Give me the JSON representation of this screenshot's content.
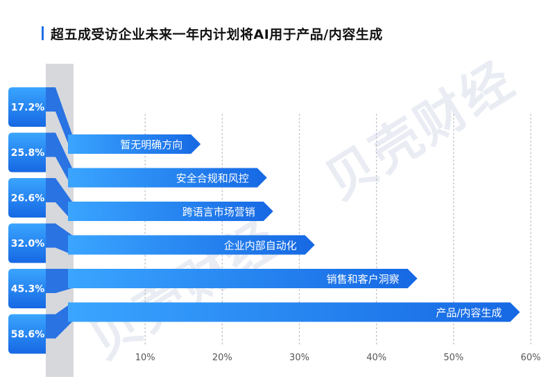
{
  "title": "超五成受访企业未来一年内计划将AI用于产品/内容生成",
  "watermark": "贝壳财经",
  "colors": {
    "bar_light": "#3aa5ff",
    "bar_dark": "#1668e3",
    "rail": "#d6d8dc",
    "grid": "#b9bcc2",
    "tick_text": "#555555",
    "title_accent": "#1f6fe8"
  },
  "chart_data": {
    "type": "bar",
    "orientation": "horizontal",
    "categories": [
      "暂无明确方向",
      "安全合规和风控",
      "跨语言市场营销",
      "企业内部自动化",
      "销售和客户洞察",
      "产品/内容生成"
    ],
    "values": [
      17.2,
      25.8,
      26.6,
      32.0,
      45.3,
      58.6
    ],
    "value_labels": [
      "17.2%",
      "25.8%",
      "26.6%",
      "32.0%",
      "45.3%",
      "58.6%"
    ],
    "x_ticks": [
      "10%",
      "20%",
      "30%",
      "40%",
      "50%",
      "60%"
    ],
    "x_tick_values": [
      10,
      20,
      30,
      40,
      50,
      60
    ],
    "xlim": [
      0,
      60
    ],
    "grid": true,
    "title": "超五成受访企业未来一年内计划将AI用于产品/内容生成",
    "xlabel": "",
    "ylabel": ""
  }
}
